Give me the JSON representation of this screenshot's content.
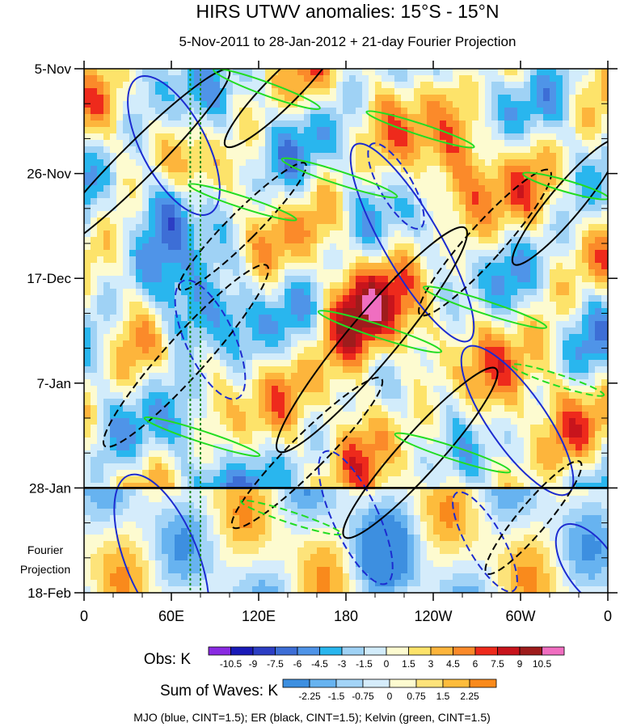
{
  "chart_data": {
    "type": "heatmap",
    "title": "HIRS UTWV anomalies: 15°S - 15°N",
    "subtitle": "5-Nov-2011 to 28-Jan-2012 + 21-day Fourier Projection",
    "y_ticks": [
      {
        "label": "5-Nov",
        "day": 0
      },
      {
        "label": "26-Nov",
        "day": 21
      },
      {
        "label": "17-Dec",
        "day": 42
      },
      {
        "label": "7-Jan",
        "day": 63
      },
      {
        "label": "28-Jan",
        "day": 84
      },
      {
        "label": "18-Feb",
        "day": 105
      }
    ],
    "y_range_days": [
      0,
      105
    ],
    "projection_start_day": 84,
    "projection_label_line1": "Fourier",
    "projection_label_line2": "Projection",
    "x_ticks": [
      {
        "label": "0",
        "lon": 0
      },
      {
        "label": "60E",
        "lon": 60
      },
      {
        "label": "120E",
        "lon": 120
      },
      {
        "label": "180",
        "lon": 180
      },
      {
        "label": "120W",
        "lon": 240
      },
      {
        "label": "60W",
        "lon": 300
      },
      {
        "label": "0",
        "lon": 360
      }
    ],
    "x_range_lon": [
      0,
      360
    ],
    "reference_lines_lon": [
      73,
      80
    ],
    "obs_colorbar": {
      "label": "Obs: K",
      "levels": [
        "-10.5",
        "-9",
        "-7.5",
        "-6",
        "-4.5",
        "-3",
        "-1.5",
        "0",
        "1.5",
        "3",
        "4.5",
        "6",
        "7.5",
        "9",
        "10.5"
      ],
      "colors": [
        "#8a2be2",
        "#1a1ab8",
        "#2c3ec4",
        "#3d6ed6",
        "#4f94e8",
        "#29b6ee",
        "#9fd2f5",
        "#d2ecfb",
        "#fdfbd0",
        "#fde36a",
        "#fdb53c",
        "#fb8a2a",
        "#ee2a1c",
        "#c8141c",
        "#9e1c1c",
        "#f06ec0"
      ]
    },
    "waves_colorbar": {
      "label": "Sum of Waves: K",
      "levels": [
        "-2.25",
        "-1.5",
        "-0.75",
        "0",
        "0.75",
        "1.5",
        "2.25"
      ],
      "colors": [
        "#3d8fe0",
        "#67b3f0",
        "#a3d4f7",
        "#d5ecfb",
        "#fdfbd0",
        "#fde37a",
        "#fdbc3c",
        "#f98a1c"
      ]
    },
    "footer": "MJO (blue, CINT=1.5); ER (black, CINT=1.5); Kelvin (green, CINT=1.5)",
    "overlays": [
      {
        "name": "MJO",
        "color": "#1c2bd0",
        "cint": 1.5
      },
      {
        "name": "ER",
        "color": "#000000",
        "cint": 1.5
      },
      {
        "name": "Kelvin",
        "color": "#22dd22",
        "cint": 1.5
      }
    ]
  }
}
